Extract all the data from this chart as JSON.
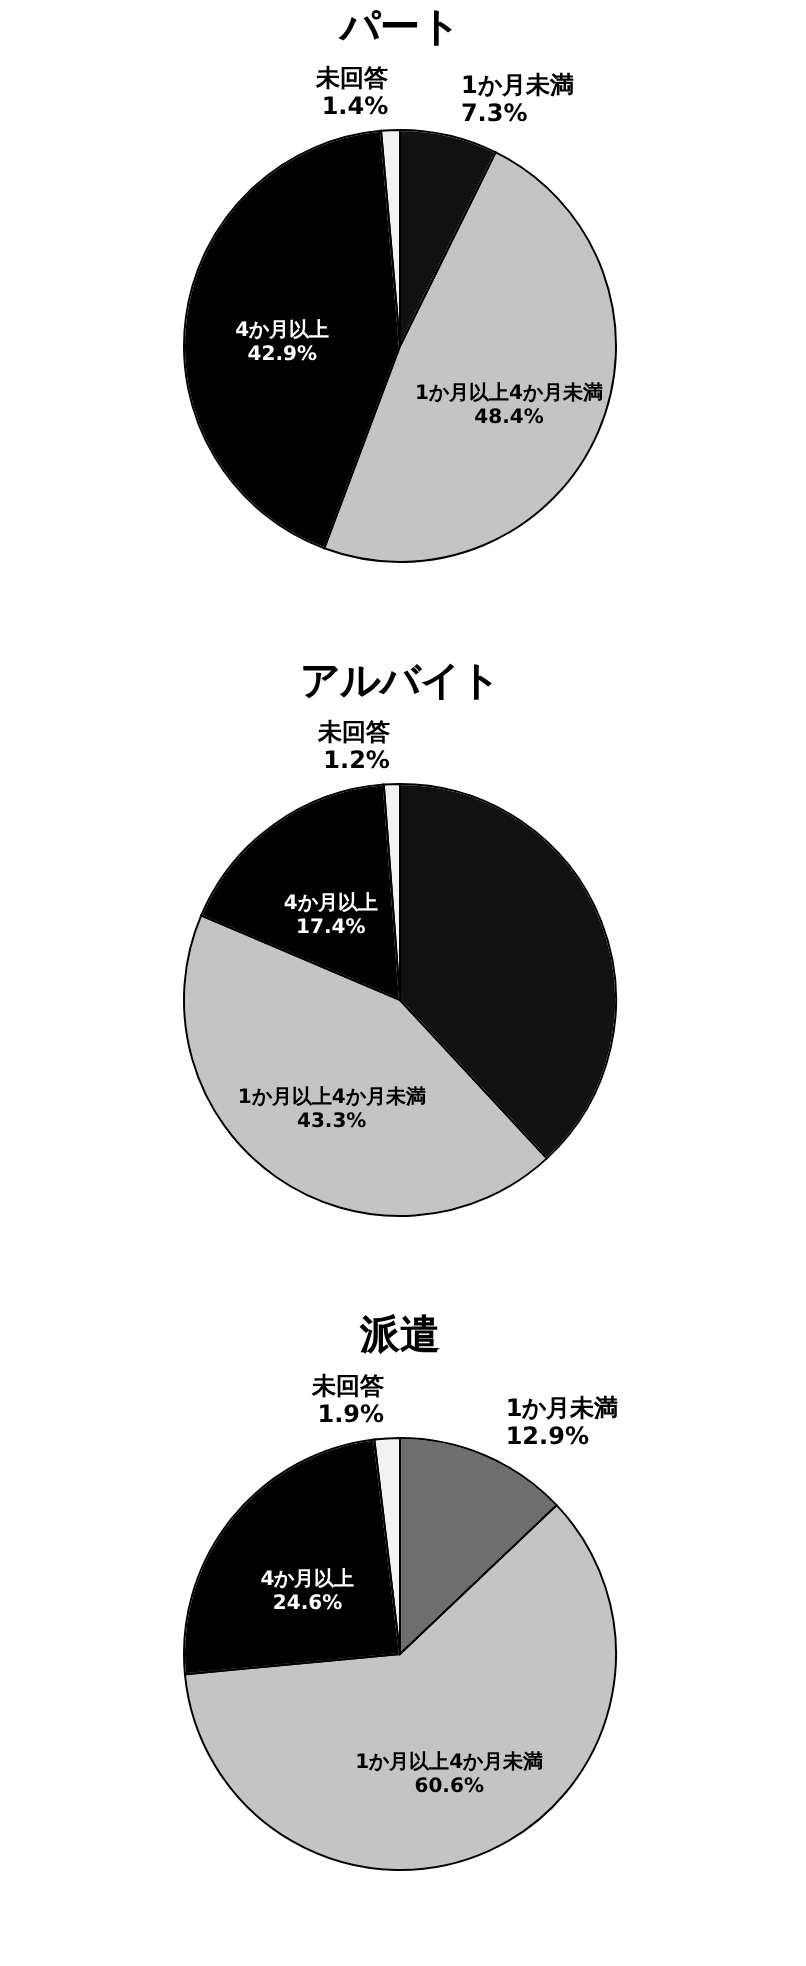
{
  "chart_data": [
    {
      "type": "pie",
      "title": "パート",
      "categories": [
        "1か月未満",
        "1か月以上4か月未満",
        "4か月以上",
        "未回答"
      ],
      "values": [
        7.3,
        48.4,
        42.9,
        1.4
      ],
      "colors": [
        "#111111",
        "#c4c4c4",
        "#000000",
        "#f2f2f2"
      ],
      "value_labels": [
        "7.3%",
        "48.4%",
        "42.9%",
        "1.4%"
      ]
    },
    {
      "type": "pie",
      "title": "アルバイト",
      "categories": [
        null,
        "1か月以上4か月未満",
        "4か月以上",
        "未回答"
      ],
      "values": [
        38.1,
        43.3,
        17.4,
        1.2
      ],
      "colors": [
        "#111111",
        "#c4c4c4",
        "#000000",
        "#f2f2f2"
      ],
      "value_labels": [
        null,
        "43.3%",
        "17.4%",
        "1.2%"
      ]
    },
    {
      "type": "pie",
      "title": "派遣",
      "categories": [
        "1か月未満",
        "1か月以上4か月未満",
        "4か月以上",
        "未回答"
      ],
      "values": [
        12.9,
        60.6,
        24.6,
        1.9
      ],
      "colors": [
        "#6e6e6e",
        "#c4c4c4",
        "#000000",
        "#f2f2f2"
      ],
      "value_labels": [
        "12.9%",
        "60.6%",
        "24.6%",
        "1.9%"
      ]
    }
  ]
}
